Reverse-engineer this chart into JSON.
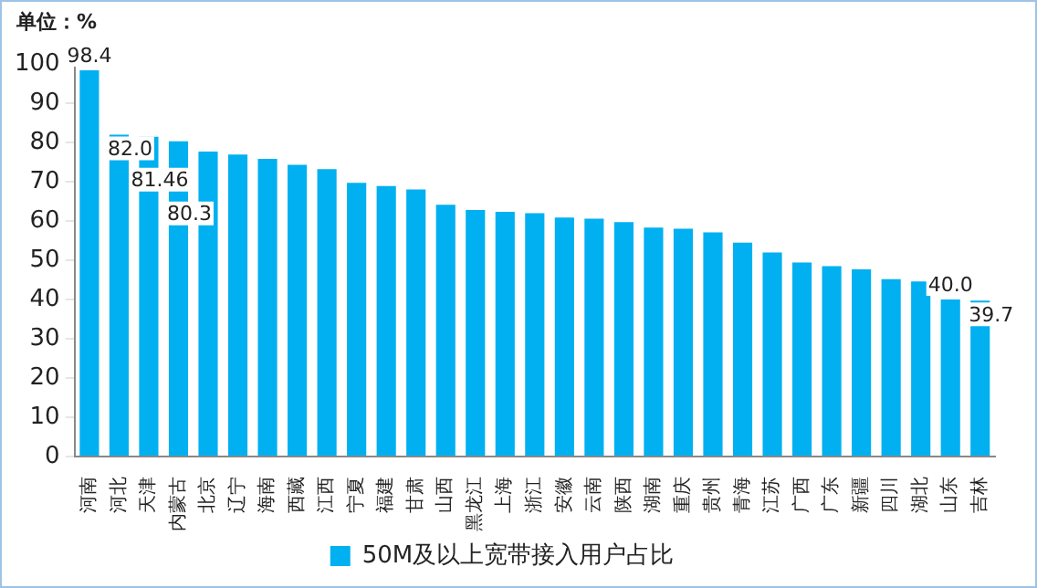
{
  "chart_data": {
    "type": "bar",
    "ylabel": "单位：%",
    "categories": [
      "河南",
      "河北",
      "天津",
      "内蒙古",
      "北京",
      "辽宁",
      "海南",
      "西藏",
      "江西",
      "宁夏",
      "福建",
      "甘肃",
      "山西",
      "黑龙江",
      "上海",
      "浙江",
      "安徽",
      "云南",
      "陕西",
      "湖南",
      "重庆",
      "贵州",
      "青海",
      "江苏",
      "广西",
      "广东",
      "新疆",
      "四川",
      "湖北",
      "山东",
      "吉林"
    ],
    "series": [
      {
        "name": "50M及以上宽带接入用户占比",
        "color": "#00b0f0",
        "values": [
          98.4,
          82.0,
          81.46,
          80.3,
          77.7,
          76.9,
          75.8,
          74.3,
          73.2,
          69.7,
          68.9,
          68.0,
          64.1,
          62.8,
          62.3,
          62.0,
          60.9,
          60.6,
          59.7,
          58.3,
          58.0,
          57.1,
          54.5,
          52.0,
          49.4,
          48.5,
          47.7,
          45.2,
          44.6,
          40.0,
          39.7
        ],
        "value_labels": [
          "98.4",
          "82.0",
          "81.46",
          "80.3",
          null,
          null,
          null,
          null,
          null,
          null,
          null,
          null,
          null,
          null,
          null,
          null,
          null,
          null,
          null,
          null,
          null,
          null,
          null,
          null,
          null,
          null,
          null,
          null,
          null,
          "40.0",
          "39.7"
        ]
      }
    ],
    "ylim": [
      0,
      100
    ],
    "yticks": [
      0,
      10,
      20,
      30,
      40,
      50,
      60,
      70,
      80,
      90,
      100
    ],
    "grid": false,
    "legend": "bottom"
  }
}
